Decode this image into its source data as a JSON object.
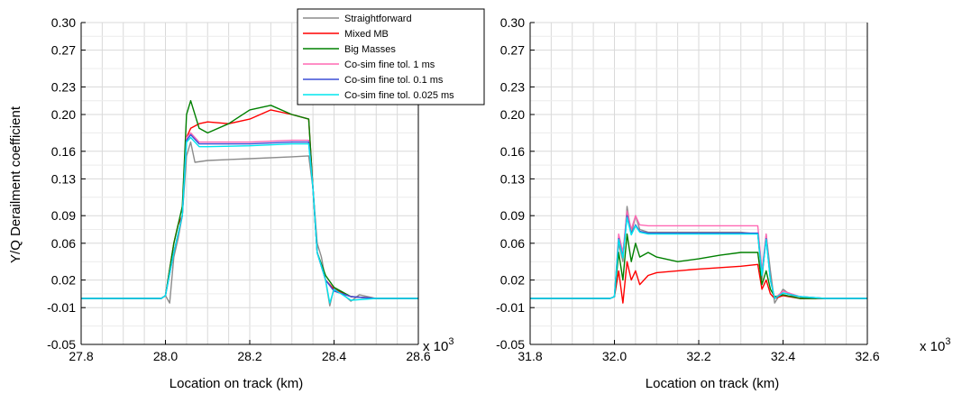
{
  "chart_data": [
    {
      "type": "line",
      "title": "",
      "xlabel": "Location on track (km)",
      "ylabel": "Y/Q Derailment coefficient",
      "x_multiplier": "x 10",
      "x_multiplier_exp": "3",
      "xlim": [
        27.8,
        28.6
      ],
      "ylim": [
        -0.05,
        0.3
      ],
      "xticks": [
        "27.8",
        "28.0",
        "28.2",
        "28.4",
        "28.6"
      ],
      "yticks": [
        "-0.05",
        "-0.01",
        "0.02",
        "0.06",
        "0.09",
        "0.13",
        "0.16",
        "0.20",
        "0.23",
        "0.27",
        "0.30"
      ],
      "grid": true,
      "legend": "top-right",
      "series": [
        {
          "name": "Straightforward",
          "color": "#8c8c8c",
          "x": [
            27.8,
            27.99,
            28.0,
            28.01,
            28.02,
            28.03,
            28.04,
            28.05,
            28.06,
            28.07,
            28.1,
            28.2,
            28.3,
            28.34,
            28.35,
            28.36,
            28.37,
            28.38,
            28.39,
            28.4,
            28.42,
            28.44,
            28.46,
            28.5,
            28.6
          ],
          "y": [
            0.0,
            0.0,
            0.003,
            -0.005,
            0.045,
            0.065,
            0.09,
            0.155,
            0.17,
            0.148,
            0.15,
            0.152,
            0.154,
            0.155,
            0.12,
            0.06,
            0.045,
            0.02,
            -0.008,
            0.012,
            0.005,
            -0.003,
            0.004,
            0.0,
            0.0
          ]
        },
        {
          "name": "Mixed MB",
          "color": "#ff0000",
          "x": [
            27.8,
            27.99,
            28.0,
            28.02,
            28.03,
            28.04,
            28.05,
            28.06,
            28.08,
            28.1,
            28.15,
            28.2,
            28.25,
            28.3,
            28.34,
            28.35,
            28.36,
            28.38,
            28.4,
            28.44,
            28.5,
            28.6
          ],
          "y": [
            0.0,
            0.0,
            0.003,
            0.06,
            0.08,
            0.09,
            0.175,
            0.185,
            0.19,
            0.192,
            0.19,
            0.195,
            0.205,
            0.2,
            0.195,
            0.12,
            0.05,
            0.02,
            0.01,
            0.002,
            0.0,
            0.0
          ]
        },
        {
          "name": "Big Masses",
          "color": "#008000",
          "x": [
            27.8,
            27.99,
            28.0,
            28.02,
            28.03,
            28.04,
            28.05,
            28.06,
            28.08,
            28.1,
            28.15,
            28.2,
            28.25,
            28.3,
            28.34,
            28.35,
            28.36,
            28.38,
            28.4,
            28.44,
            28.5,
            28.6
          ],
          "y": [
            0.0,
            0.0,
            0.003,
            0.06,
            0.08,
            0.1,
            0.2,
            0.215,
            0.185,
            0.18,
            0.19,
            0.205,
            0.21,
            0.2,
            0.195,
            0.12,
            0.05,
            0.025,
            0.012,
            0.002,
            0.0,
            0.0
          ]
        },
        {
          "name": "Co-sim fine tol. 1 ms",
          "color": "#ff69b4",
          "x": [
            27.8,
            27.99,
            28.0,
            28.02,
            28.03,
            28.04,
            28.05,
            28.06,
            28.08,
            28.1,
            28.2,
            28.3,
            28.34,
            28.35,
            28.36,
            28.38,
            28.4,
            28.44,
            28.5,
            28.6
          ],
          "y": [
            0.0,
            0.0,
            0.003,
            0.05,
            0.07,
            0.09,
            0.175,
            0.18,
            0.17,
            0.17,
            0.17,
            0.172,
            0.172,
            0.12,
            0.05,
            0.02,
            0.008,
            0.002,
            0.0,
            0.0
          ]
        },
        {
          "name": "Co-sim fine tol. 0.1 ms",
          "color": "#3b4fd6",
          "x": [
            27.8,
            27.99,
            28.0,
            28.02,
            28.03,
            28.04,
            28.05,
            28.06,
            28.08,
            28.1,
            28.2,
            28.3,
            28.34,
            28.35,
            28.36,
            28.38,
            28.4,
            28.44,
            28.5,
            28.6
          ],
          "y": [
            0.0,
            0.0,
            0.003,
            0.05,
            0.07,
            0.09,
            0.172,
            0.178,
            0.168,
            0.168,
            0.168,
            0.17,
            0.17,
            0.12,
            0.05,
            0.02,
            0.008,
            0.002,
            0.0,
            0.0
          ]
        },
        {
          "name": "Co-sim fine tol. 0.025 ms",
          "color": "#00e5ee",
          "x": [
            27.8,
            27.99,
            28.0,
            28.02,
            28.03,
            28.04,
            28.05,
            28.06,
            28.08,
            28.1,
            28.2,
            28.3,
            28.34,
            28.35,
            28.36,
            28.38,
            28.39,
            28.4,
            28.42,
            28.44,
            28.5,
            28.6
          ],
          "y": [
            0.0,
            0.0,
            0.003,
            0.05,
            0.07,
            0.09,
            0.17,
            0.175,
            0.165,
            0.165,
            0.166,
            0.168,
            0.168,
            0.12,
            0.05,
            0.02,
            -0.005,
            0.01,
            0.004,
            -0.002,
            0.0,
            0.0
          ]
        }
      ]
    },
    {
      "type": "line",
      "title": "",
      "xlabel": "Location on track (km)",
      "ylabel": "",
      "x_multiplier": "x 10",
      "x_multiplier_exp": "3",
      "xlim": [
        31.8,
        32.6
      ],
      "ylim": [
        -0.05,
        0.3
      ],
      "xticks": [
        "31.8",
        "32.0",
        "32.2",
        "32.4",
        "32.6"
      ],
      "yticks": [
        "-0.05",
        "-0.01",
        "0.02",
        "0.06",
        "0.09",
        "0.13",
        "0.16",
        "0.20",
        "0.23",
        "0.27",
        "0.30"
      ],
      "grid": true,
      "legend": "none",
      "series": [
        {
          "name": "Straightforward",
          "color": "#8c8c8c",
          "x": [
            31.8,
            31.99,
            32.0,
            32.01,
            32.02,
            32.03,
            32.04,
            32.05,
            32.06,
            32.08,
            32.1,
            32.2,
            32.3,
            32.34,
            32.35,
            32.36,
            32.37,
            32.38,
            32.4,
            32.42,
            32.44,
            32.5,
            32.6
          ],
          "y": [
            0.0,
            0.0,
            0.002,
            0.06,
            0.04,
            0.1,
            0.07,
            0.09,
            0.075,
            0.072,
            0.072,
            0.072,
            0.072,
            0.07,
            0.02,
            0.07,
            0.03,
            -0.005,
            0.01,
            0.003,
            0.0,
            0.0,
            0.0
          ]
        },
        {
          "name": "Mixed MB",
          "color": "#ff0000",
          "x": [
            31.8,
            31.99,
            32.0,
            32.01,
            32.02,
            32.03,
            32.04,
            32.05,
            32.06,
            32.08,
            32.1,
            32.2,
            32.3,
            32.34,
            32.35,
            32.36,
            32.37,
            32.38,
            32.4,
            32.44,
            32.5,
            32.6
          ],
          "y": [
            0.0,
            0.0,
            0.002,
            0.03,
            -0.005,
            0.04,
            0.02,
            0.03,
            0.015,
            0.025,
            0.028,
            0.032,
            0.035,
            0.037,
            0.01,
            0.02,
            0.005,
            0.0,
            0.003,
            0.0,
            0.0,
            0.0
          ]
        },
        {
          "name": "Big Masses",
          "color": "#008000",
          "x": [
            31.8,
            31.99,
            32.0,
            32.01,
            32.02,
            32.03,
            32.04,
            32.05,
            32.06,
            32.08,
            32.1,
            32.15,
            32.2,
            32.25,
            32.3,
            32.34,
            32.35,
            32.36,
            32.37,
            32.38,
            32.4,
            32.44,
            32.5,
            32.6
          ],
          "y": [
            0.0,
            0.0,
            0.002,
            0.05,
            0.02,
            0.07,
            0.04,
            0.06,
            0.045,
            0.05,
            0.045,
            0.04,
            0.043,
            0.047,
            0.05,
            0.05,
            0.015,
            0.03,
            0.01,
            0.002,
            0.004,
            0.0,
            0.0,
            0.0
          ]
        },
        {
          "name": "Co-sim fine tol. 1 ms",
          "color": "#ff69b4",
          "x": [
            31.8,
            31.99,
            32.0,
            32.01,
            32.02,
            32.03,
            32.04,
            32.05,
            32.06,
            32.08,
            32.1,
            32.2,
            32.3,
            32.34,
            32.35,
            32.36,
            32.37,
            32.38,
            32.4,
            32.44,
            32.5,
            32.6
          ],
          "y": [
            0.0,
            0.0,
            0.002,
            0.07,
            0.05,
            0.095,
            0.075,
            0.09,
            0.08,
            0.079,
            0.079,
            0.079,
            0.079,
            0.079,
            0.03,
            0.07,
            0.02,
            0.0,
            0.008,
            0.002,
            0.0,
            0.0
          ]
        },
        {
          "name": "Co-sim fine tol. 0.1 ms",
          "color": "#3b4fd6",
          "x": [
            31.8,
            31.99,
            32.0,
            32.01,
            32.02,
            32.03,
            32.04,
            32.05,
            32.06,
            32.08,
            32.1,
            32.2,
            32.3,
            32.34,
            32.35,
            32.36,
            32.37,
            32.38,
            32.4,
            32.44,
            32.5,
            32.6
          ],
          "y": [
            0.0,
            0.0,
            0.002,
            0.065,
            0.045,
            0.09,
            0.07,
            0.08,
            0.073,
            0.071,
            0.071,
            0.071,
            0.071,
            0.071,
            0.025,
            0.065,
            0.02,
            0.0,
            0.006,
            0.002,
            0.0,
            0.0
          ]
        },
        {
          "name": "Co-sim fine tol. 0.025 ms",
          "color": "#00e5ee",
          "x": [
            31.8,
            31.99,
            32.0,
            32.01,
            32.02,
            32.03,
            32.04,
            32.05,
            32.06,
            32.08,
            32.1,
            32.2,
            32.3,
            32.34,
            32.35,
            32.36,
            32.37,
            32.38,
            32.4,
            32.44,
            32.5,
            32.6
          ],
          "y": [
            0.0,
            0.0,
            0.002,
            0.064,
            0.044,
            0.088,
            0.069,
            0.079,
            0.072,
            0.07,
            0.07,
            0.07,
            0.07,
            0.07,
            0.025,
            0.064,
            0.02,
            0.0,
            0.006,
            0.002,
            0.0,
            0.0
          ]
        }
      ]
    }
  ]
}
